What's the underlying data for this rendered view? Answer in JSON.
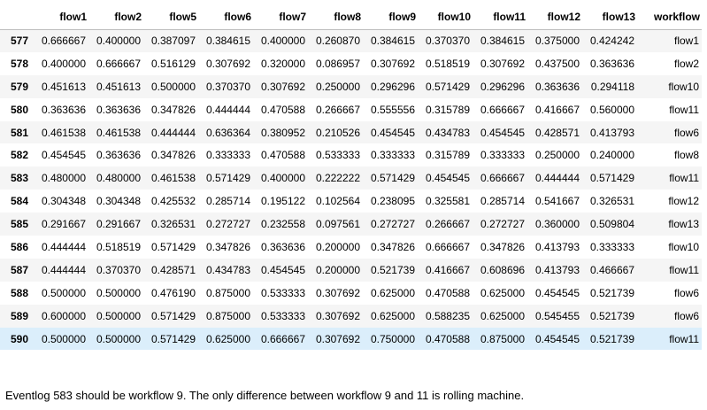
{
  "table": {
    "columns": [
      "",
      "flow1",
      "flow2",
      "flow5",
      "flow6",
      "flow7",
      "flow8",
      "flow9",
      "flow10",
      "flow11",
      "flow12",
      "flow13",
      "workflow"
    ],
    "rows": [
      {
        "index": "577",
        "cells": [
          "0.666667",
          "0.400000",
          "0.387097",
          "0.384615",
          "0.400000",
          "0.260870",
          "0.384615",
          "0.370370",
          "0.384615",
          "0.375000",
          "0.424242",
          "flow1"
        ]
      },
      {
        "index": "578",
        "cells": [
          "0.400000",
          "0.666667",
          "0.516129",
          "0.307692",
          "0.320000",
          "0.086957",
          "0.307692",
          "0.518519",
          "0.307692",
          "0.437500",
          "0.363636",
          "flow2"
        ]
      },
      {
        "index": "579",
        "cells": [
          "0.451613",
          "0.451613",
          "0.500000",
          "0.370370",
          "0.307692",
          "0.250000",
          "0.296296",
          "0.571429",
          "0.296296",
          "0.363636",
          "0.294118",
          "flow10"
        ]
      },
      {
        "index": "580",
        "cells": [
          "0.363636",
          "0.363636",
          "0.347826",
          "0.444444",
          "0.470588",
          "0.266667",
          "0.555556",
          "0.315789",
          "0.666667",
          "0.416667",
          "0.560000",
          "flow11"
        ]
      },
      {
        "index": "581",
        "cells": [
          "0.461538",
          "0.461538",
          "0.444444",
          "0.636364",
          "0.380952",
          "0.210526",
          "0.454545",
          "0.434783",
          "0.454545",
          "0.428571",
          "0.413793",
          "flow6"
        ]
      },
      {
        "index": "582",
        "cells": [
          "0.454545",
          "0.363636",
          "0.347826",
          "0.333333",
          "0.470588",
          "0.533333",
          "0.333333",
          "0.315789",
          "0.333333",
          "0.250000",
          "0.240000",
          "flow8"
        ]
      },
      {
        "index": "583",
        "cells": [
          "0.480000",
          "0.480000",
          "0.461538",
          "0.571429",
          "0.400000",
          "0.222222",
          "0.571429",
          "0.454545",
          "0.666667",
          "0.444444",
          "0.571429",
          "flow11"
        ]
      },
      {
        "index": "584",
        "cells": [
          "0.304348",
          "0.304348",
          "0.425532",
          "0.285714",
          "0.195122",
          "0.102564",
          "0.238095",
          "0.325581",
          "0.285714",
          "0.541667",
          "0.326531",
          "flow12"
        ]
      },
      {
        "index": "585",
        "cells": [
          "0.291667",
          "0.291667",
          "0.326531",
          "0.272727",
          "0.232558",
          "0.097561",
          "0.272727",
          "0.266667",
          "0.272727",
          "0.360000",
          "0.509804",
          "flow13"
        ]
      },
      {
        "index": "586",
        "cells": [
          "0.444444",
          "0.518519",
          "0.571429",
          "0.347826",
          "0.363636",
          "0.200000",
          "0.347826",
          "0.666667",
          "0.347826",
          "0.413793",
          "0.333333",
          "flow10"
        ]
      },
      {
        "index": "587",
        "cells": [
          "0.444444",
          "0.370370",
          "0.428571",
          "0.434783",
          "0.454545",
          "0.200000",
          "0.521739",
          "0.416667",
          "0.608696",
          "0.413793",
          "0.466667",
          "flow11"
        ]
      },
      {
        "index": "588",
        "cells": [
          "0.500000",
          "0.500000",
          "0.476190",
          "0.875000",
          "0.533333",
          "0.307692",
          "0.625000",
          "0.470588",
          "0.625000",
          "0.454545",
          "0.521739",
          "flow6"
        ]
      },
      {
        "index": "589",
        "cells": [
          "0.600000",
          "0.500000",
          "0.571429",
          "0.875000",
          "0.533333",
          "0.307692",
          "0.625000",
          "0.588235",
          "0.625000",
          "0.545455",
          "0.521739",
          "flow6"
        ]
      },
      {
        "index": "590",
        "cells": [
          "0.500000",
          "0.500000",
          "0.571429",
          "0.625000",
          "0.666667",
          "0.307692",
          "0.750000",
          "0.470588",
          "0.875000",
          "0.454545",
          "0.521739",
          "flow11"
        ]
      }
    ],
    "hovered_row": "590",
    "colors": {
      "odd_row": "#f5f5f5",
      "even_row": "#ffffff",
      "hover_row": "#dbeefb",
      "header_rule": "#bdbdbd"
    }
  },
  "note": {
    "text": "Eventlog 583 should be workflow 9. The only difference between workflow 9 and 11 is rolling machine."
  }
}
